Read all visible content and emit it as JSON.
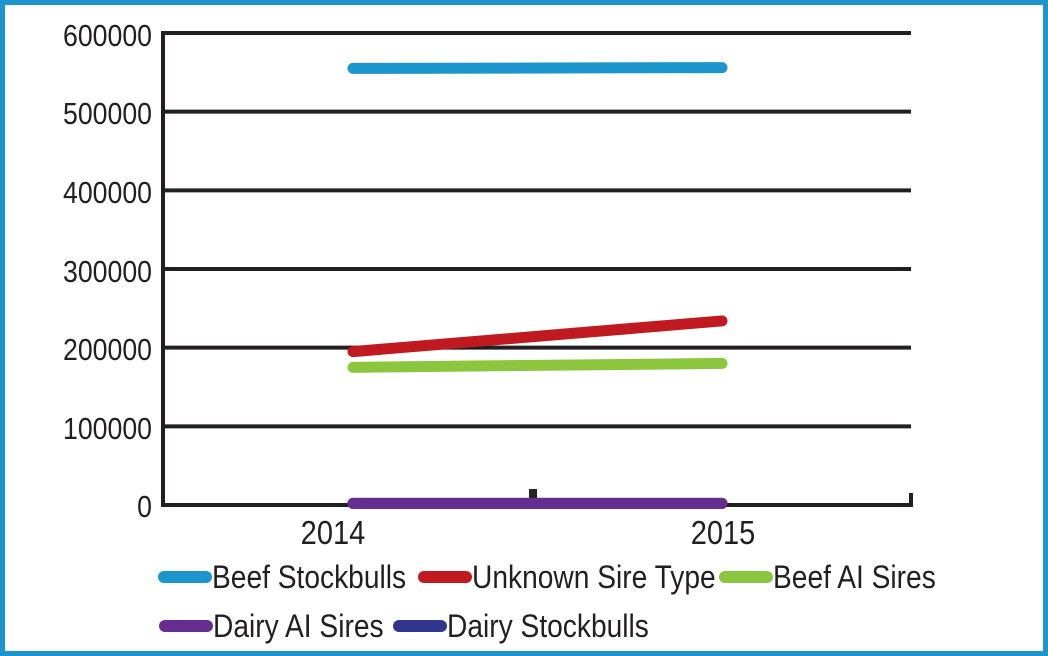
{
  "frame": {
    "border_color": "#1b95cc",
    "background": "#ffffff"
  },
  "chart_data": {
    "type": "line",
    "title": "",
    "categories": [
      "2014",
      "2015"
    ],
    "series": [
      {
        "name": "Beef Stockbulls",
        "color": "#1b95cc",
        "values": [
          555000,
          556000
        ]
      },
      {
        "name": "Unknown Sire Type",
        "color": "#c01a20",
        "values": [
          195000,
          234000
        ]
      },
      {
        "name": "Beef AI Sires",
        "color": "#8cc63f",
        "values": [
          175000,
          180000
        ]
      },
      {
        "name": "Dairy AI Sires",
        "color": "#662d91",
        "values": [
          2000,
          2000
        ]
      },
      {
        "name": "Dairy Stockbulls",
        "color": "#32358e",
        "values": [
          2000,
          2000
        ]
      }
    ],
    "ylim": [
      0,
      600000
    ],
    "ytick_step": 100000,
    "yticks": [
      "600000",
      "500000",
      "400000",
      "300000",
      "200000",
      "100000",
      "0"
    ],
    "grid": "horizontal",
    "axis_color": "#231f20",
    "legend_position": "bottom",
    "legend_rows": [
      [
        "Beef Stockbulls",
        "Unknown Sire Type",
        "Beef AI Sires"
      ],
      [
        "Dairy AI Sires",
        "Dairy Stockbulls"
      ]
    ]
  }
}
